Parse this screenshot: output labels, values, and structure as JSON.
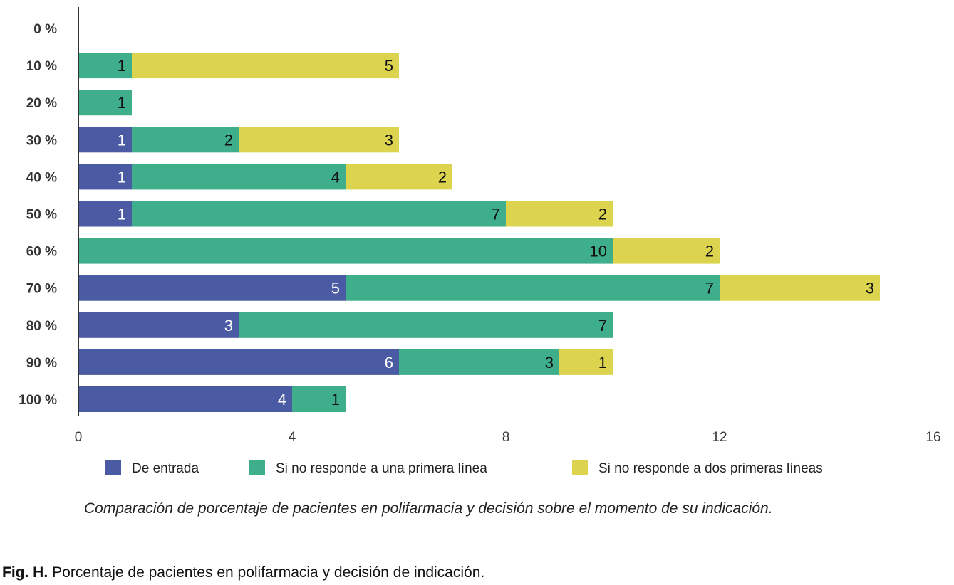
{
  "chart_data": {
    "type": "bar",
    "orientation": "horizontal",
    "stacked": true,
    "categories": [
      "0 %",
      "10 %",
      "20 %",
      "30 %",
      "40 %",
      "50 %",
      "60 %",
      "70 %",
      "80 %",
      "90 %",
      "100 %"
    ],
    "series": [
      {
        "name": "De entrada",
        "color": "#4a5aa3",
        "values": [
          0,
          0,
          0,
          1,
          1,
          1,
          0,
          5,
          3,
          6,
          4
        ]
      },
      {
        "name": "Si no responde a una primera línea",
        "color": "#3fae8b",
        "values": [
          0,
          1,
          1,
          2,
          4,
          7,
          10,
          7,
          7,
          3,
          1
        ]
      },
      {
        "name": "Si no responde a dos primeras líneas",
        "color": "#dcd44f",
        "values": [
          0,
          5,
          0,
          3,
          2,
          2,
          2,
          3,
          0,
          1,
          0
        ]
      }
    ],
    "xlim": [
      0,
      16
    ],
    "xticks": [
      "0",
      "4",
      "8",
      "12",
      "16"
    ],
    "xtick_values": [
      0,
      4,
      8,
      12,
      16
    ],
    "grid": false,
    "legend_position": "bottom",
    "data_labels": true
  },
  "caption": "Comparación de porcentaje de pacientes en polifarmacia y decisión sobre el momento de su indicación.",
  "figure_label": "Fig. H.",
  "figure_title": "Porcentaje de pacientes en polifarmacia y decisión de indicación."
}
